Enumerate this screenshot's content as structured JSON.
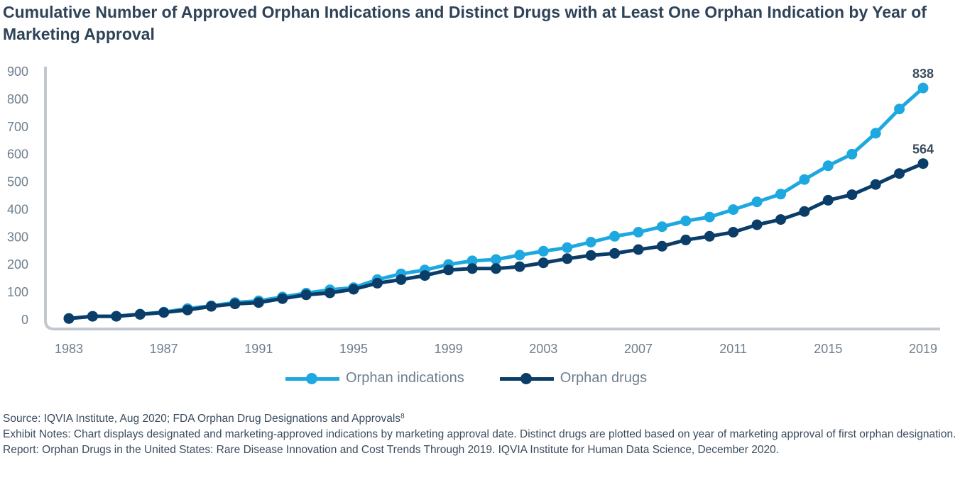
{
  "title": "Cumulative Number of Approved Orphan Indications and Distinct Drugs with at Least One Orphan Indication by Year of Marketing Approval",
  "chart_data": {
    "type": "line",
    "title": "Cumulative Number of Approved Orphan Indications and Distinct Drugs with at Least One Orphan Indication by Year of Marketing Approval",
    "xlabel": "",
    "ylabel": "",
    "x": [
      1983,
      1984,
      1985,
      1986,
      1987,
      1988,
      1989,
      1990,
      1991,
      1992,
      1993,
      1994,
      1995,
      1996,
      1997,
      1998,
      1999,
      2000,
      2001,
      2002,
      2003,
      2004,
      2005,
      2006,
      2007,
      2008,
      2009,
      2010,
      2011,
      2012,
      2013,
      2014,
      2015,
      2016,
      2017,
      2018,
      2019
    ],
    "x_ticks": [
      "1983",
      "1987",
      "1991",
      "1995",
      "1999",
      "2003",
      "2007",
      "2011",
      "2015",
      "2019"
    ],
    "y_ticks": [
      "0",
      "100",
      "200",
      "300",
      "400",
      "500",
      "600",
      "700",
      "800",
      "900"
    ],
    "ylim": [
      0,
      900
    ],
    "xlim": [
      1983,
      2019
    ],
    "grid": false,
    "legend_position": "bottom",
    "series": [
      {
        "name": "Orphan indications",
        "color": "#1ea8e0",
        "values": [
          2,
          10,
          10,
          18,
          25,
          38,
          48,
          60,
          66,
          80,
          94,
          106,
          114,
          143,
          164,
          178,
          198,
          211,
          216,
          232,
          246,
          259,
          279,
          300,
          315,
          335,
          356,
          370,
          397,
          425,
          453,
          506,
          556,
          598,
          674,
          762,
          838
        ],
        "end_label": "838"
      },
      {
        "name": "Orphan drugs",
        "color": "#0b3d69",
        "values": [
          2,
          10,
          10,
          17,
          24,
          33,
          46,
          55,
          60,
          74,
          88,
          95,
          108,
          130,
          143,
          158,
          178,
          183,
          183,
          190,
          204,
          219,
          231,
          238,
          252,
          264,
          287,
          300,
          315,
          342,
          361,
          390,
          431,
          451,
          488,
          528,
          564
        ],
        "end_label": "564"
      }
    ]
  },
  "notes": {
    "source": "Source: IQVIA Institute, Aug 2020; FDA Orphan Drug Designations and Approvals",
    "source_ref": "8",
    "exhibit_notes": "Exhibit Notes: Chart displays designated and marketing-approved indications by marketing approval date. Distinct drugs are plotted based on year of marketing approval of first orphan designation.",
    "report": "Report: Orphan Drugs in the United States: Rare Disease Innovation and Cost Trends Through 2019. IQVIA Institute for Human Data Science, December 2020."
  }
}
